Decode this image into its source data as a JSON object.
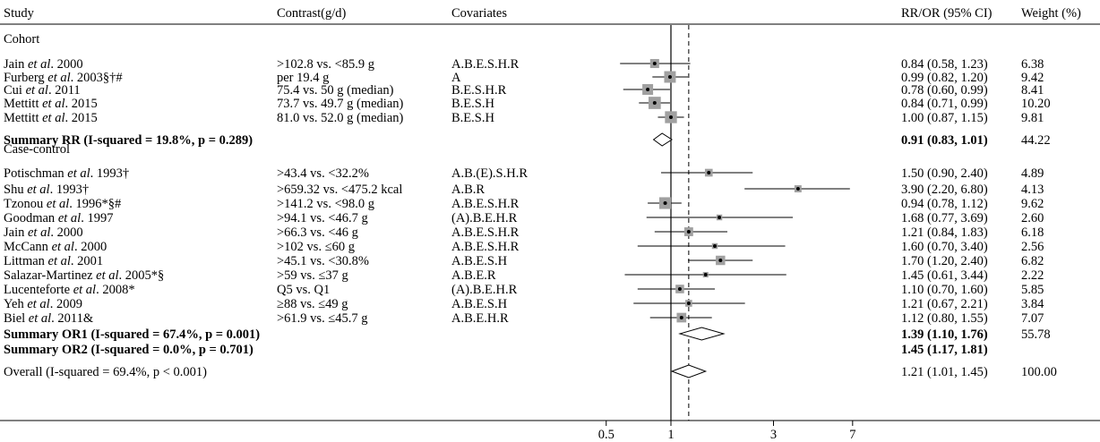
{
  "chart_data": {
    "type": "forest",
    "scale": "log",
    "headers": {
      "study": "Study",
      "contrast": "Contrast(g/d)",
      "covariates": "Covariates",
      "estimate": "RR/OR (95% CI)",
      "weight": "Weight (%)"
    },
    "x_ticks": [
      {
        "value": 0.5,
        "label": "0.5"
      },
      {
        "value": 1,
        "label": "1"
      },
      {
        "value": 3,
        "label": "3"
      },
      {
        "value": 7,
        "label": "7"
      }
    ],
    "null_line": 1,
    "overall_line": 1.21,
    "rows": [
      {
        "kind": "group",
        "label": "Cohort"
      },
      {
        "kind": "study",
        "study_pre": "Jain ",
        "study_em": "et al",
        "study_post": ". 2000",
        "contrast": ">102.8 vs. <85.9 g",
        "covariates": "A.B.E.S.H.R",
        "est": 0.84,
        "lo": 0.58,
        "hi": 1.23,
        "ci_text": "0.84 (0.58, 1.23)",
        "weight": "6.38"
      },
      {
        "kind": "study",
        "study_pre": "Furberg ",
        "study_em": "et al",
        "study_post": ". 2003§†#",
        "contrast": "per 19.4 g",
        "covariates": "A",
        "est": 0.99,
        "lo": 0.82,
        "hi": 1.2,
        "ci_text": "0.99 (0.82, 1.20)",
        "weight": "9.42"
      },
      {
        "kind": "study",
        "study_pre": "Cui ",
        "study_em": "et al",
        "study_post": ". 2011",
        "contrast": "75.4 vs. 50 g (median)",
        "covariates": "B.E.S.H.R",
        "est": 0.78,
        "lo": 0.6,
        "hi": 0.99,
        "ci_text": "0.78 (0.60, 0.99)",
        "weight": "8.41"
      },
      {
        "kind": "study",
        "study_pre": "Mettitt ",
        "study_em": "et al",
        "study_post": ". 2015",
        "contrast": "73.7 vs. 49.7 g (median)",
        "covariates": "B.E.S.H",
        "est": 0.84,
        "lo": 0.71,
        "hi": 0.99,
        "ci_text": "0.84 (0.71, 0.99)",
        "weight": "10.20"
      },
      {
        "kind": "study",
        "study_pre": "Mettitt ",
        "study_em": "et al",
        "study_post": ". 2015",
        "contrast": "81.0 vs. 52.0 g (median)",
        "covariates": "B.E.S.H",
        "est": 1.0,
        "lo": 0.87,
        "hi": 1.15,
        "ci_text": "1.00 (0.87, 1.15)",
        "weight": "9.81"
      },
      {
        "kind": "summary",
        "bold": true,
        "label": "Summary RR  (I-squared = 19.8%, p = 0.289)",
        "est": 0.91,
        "lo": 0.83,
        "hi": 1.01,
        "ci_text": "0.91 (0.83, 1.01)",
        "weight": "44.22"
      },
      {
        "kind": "group",
        "label": "Case-control"
      },
      {
        "kind": "study",
        "study_pre": "Potischman ",
        "study_em": "et al",
        "study_post": ". 1993†",
        "contrast": ">43.4 vs. <32.2%",
        "covariates": "A.B.(E).S.H.R",
        "est": 1.5,
        "lo": 0.9,
        "hi": 2.4,
        "ci_text": "1.50 (0.90, 2.40)",
        "weight": "4.89"
      },
      {
        "kind": "study",
        "study_pre": "Shu ",
        "study_em": "et al",
        "study_post": ". 1993†",
        "contrast": ">659.32 vs. <475.2 kcal",
        "covariates": "A.B.R",
        "est": 3.9,
        "lo": 2.2,
        "hi": 6.8,
        "ci_text": "3.90 (2.20, 6.80)",
        "weight": "4.13"
      },
      {
        "kind": "study",
        "study_pre": "Tzonou ",
        "study_em": "et al",
        "study_post": ". 1996*§#",
        "contrast": ">141.2 vs. <98.0 g",
        "covariates": "A.B.E.S.H.R",
        "est": 0.94,
        "lo": 0.78,
        "hi": 1.12,
        "ci_text": "0.94 (0.78, 1.12)",
        "weight": "9.62"
      },
      {
        "kind": "study",
        "study_pre": "Goodman ",
        "study_em": "et al",
        "study_post": ". 1997",
        "contrast": ">94.1 vs. <46.7 g",
        "covariates": "(A).B.E.H.R",
        "est": 1.68,
        "lo": 0.77,
        "hi": 3.69,
        "ci_text": "1.68 (0.77, 3.69)",
        "weight": "2.60"
      },
      {
        "kind": "study",
        "study_pre": "Jain ",
        "study_em": "et al",
        "study_post": ". 2000",
        "contrast": ">66.3 vs. <46 g",
        "covariates": "A.B.E.S.H.R",
        "est": 1.21,
        "lo": 0.84,
        "hi": 1.83,
        "ci_text": "1.21 (0.84, 1.83)",
        "weight": "6.18"
      },
      {
        "kind": "study",
        "study_pre": "McCann ",
        "study_em": "et al",
        "study_post": ". 2000",
        "contrast": ">102 vs. ≤60 g",
        "covariates": "A.B.E.S.H.R",
        "est": 1.6,
        "lo": 0.7,
        "hi": 3.4,
        "ci_text": "1.60 (0.70, 3.40)",
        "weight": "2.56"
      },
      {
        "kind": "study",
        "study_pre": "Littman ",
        "study_em": "et al",
        "study_post": ". 2001",
        "contrast": ">45.1 vs. <30.8%",
        "covariates": "A.B.E.S.H",
        "est": 1.7,
        "lo": 1.2,
        "hi": 2.4,
        "ci_text": "1.70 (1.20, 2.40)",
        "weight": "6.82"
      },
      {
        "kind": "study",
        "study_pre": "Salazar-Martinez ",
        "study_em": "et al",
        "study_post": ". 2005*§",
        "contrast": ">59 vs. ≤37 g",
        "covariates": "A.B.E.R",
        "est": 1.45,
        "lo": 0.61,
        "hi": 3.44,
        "ci_text": "1.45 (0.61, 3.44)",
        "weight": "2.22"
      },
      {
        "kind": "study",
        "study_pre": "Lucenteforte ",
        "study_em": "et al",
        "study_post": ". 2008*",
        "contrast": "Q5 vs. Q1",
        "covariates": "(A).B.E.H.R",
        "est": 1.1,
        "lo": 0.7,
        "hi": 1.6,
        "ci_text": "1.10 (0.70, 1.60)",
        "weight": "5.85"
      },
      {
        "kind": "study",
        "study_pre": "Yeh ",
        "study_em": "et al",
        "study_post": ". 2009",
        "contrast": "≥88 vs. ≤49 g",
        "covariates": "A.B.E.S.H",
        "est": 1.21,
        "lo": 0.67,
        "hi": 2.21,
        "ci_text": "1.21 (0.67, 2.21)",
        "weight": "3.84"
      },
      {
        "kind": "study",
        "study_pre": "Biel ",
        "study_em": "et al",
        "study_post": ". 2011&",
        "contrast": ">61.9 vs. ≤45.7 g",
        "covariates": "A.B.E.H.R",
        "est": 1.12,
        "lo": 0.8,
        "hi": 1.55,
        "ci_text": "1.12 (0.80, 1.55)",
        "weight": "7.07"
      },
      {
        "kind": "summary",
        "bold": true,
        "label": "Summary OR1  (I-squared = 67.4%, p = 0.001)",
        "est": 1.39,
        "lo": 1.1,
        "hi": 1.76,
        "ci_text": "1.39 (1.10, 1.76)",
        "weight": "55.78"
      },
      {
        "kind": "summary_text",
        "bold": true,
        "label": "Summary OR2  (I-squared = 0.0%, p = 0.701)",
        "est": 1.45,
        "lo": 1.17,
        "hi": 1.81,
        "ci_text": "1.45 (1.17, 1.81)",
        "weight": ""
      },
      {
        "kind": "summary",
        "bold": false,
        "label": "Overall  (I-squared = 69.4%, p < 0.001)",
        "est": 1.21,
        "lo": 1.01,
        "hi": 1.45,
        "ci_text": "1.21 (1.01, 1.45)",
        "weight": "100.00"
      }
    ]
  }
}
